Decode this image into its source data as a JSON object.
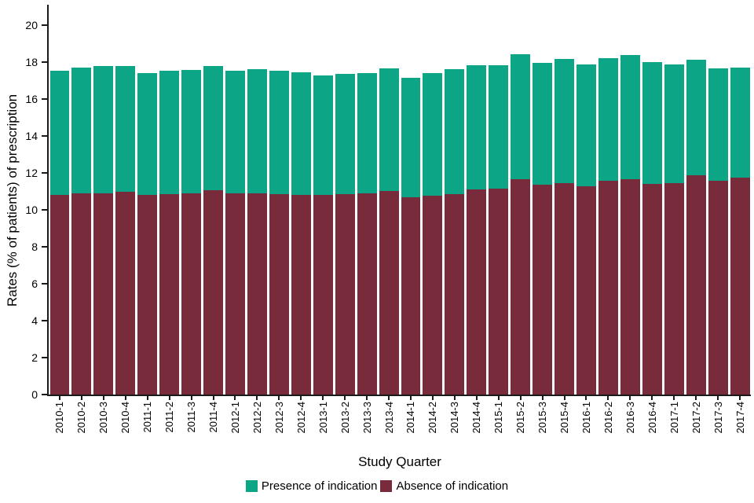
{
  "chart_data": {
    "type": "bar",
    "stacked": true,
    "title": "",
    "xlabel": "Study Quarter",
    "ylabel": "Rates (% of patients) of prescription",
    "ylim": [
      0,
      21
    ],
    "yticks": [
      0,
      2,
      4,
      6,
      8,
      10,
      12,
      14,
      16,
      18,
      20
    ],
    "grid": false,
    "legend_position": "bottom",
    "categories": [
      "2010-1",
      "2010-2",
      "2010-3",
      "2010-4",
      "2011-1",
      "2011-2",
      "2011-3",
      "2011-4",
      "2012-1",
      "2012-2",
      "2012-3",
      "2012-4",
      "2013-1",
      "2013-2",
      "2013-3",
      "2013-4",
      "2014-1",
      "2014-2",
      "2014-3",
      "2014-4",
      "2015-1",
      "2015-2",
      "2015-3",
      "2015-4",
      "2016-1",
      "2016-2",
      "2016-3",
      "2016-4",
      "2017-1",
      "2017-2",
      "2017-3",
      "2017-4"
    ],
    "series": [
      {
        "name": "Absence of indication",
        "color": "#772b3b",
        "stack_order": "bottom",
        "values": [
          10.8,
          10.9,
          10.9,
          10.95,
          10.8,
          10.85,
          10.9,
          11.05,
          10.9,
          10.9,
          10.85,
          10.8,
          10.8,
          10.85,
          10.9,
          11.0,
          10.65,
          10.75,
          10.85,
          11.1,
          11.15,
          11.65,
          11.35,
          11.45,
          11.25,
          11.55,
          11.65,
          11.4,
          11.45,
          11.85,
          11.55,
          11.75
        ]
      },
      {
        "name": "Presence of indication",
        "color": "#0ca586",
        "stack_order": "top",
        "values": [
          6.7,
          6.8,
          6.85,
          6.8,
          6.6,
          6.65,
          6.65,
          6.7,
          6.6,
          6.7,
          6.65,
          6.65,
          6.45,
          6.5,
          6.5,
          6.65,
          6.5,
          6.65,
          6.75,
          6.7,
          6.65,
          6.75,
          6.6,
          6.7,
          6.6,
          6.65,
          6.7,
          6.6,
          6.4,
          6.25,
          6.1,
          5.95
        ]
      }
    ],
    "legend": [
      {
        "label": "Presence of indication",
        "color": "#0ca586"
      },
      {
        "label": "Absence of indication",
        "color": "#772b3b"
      }
    ]
  }
}
